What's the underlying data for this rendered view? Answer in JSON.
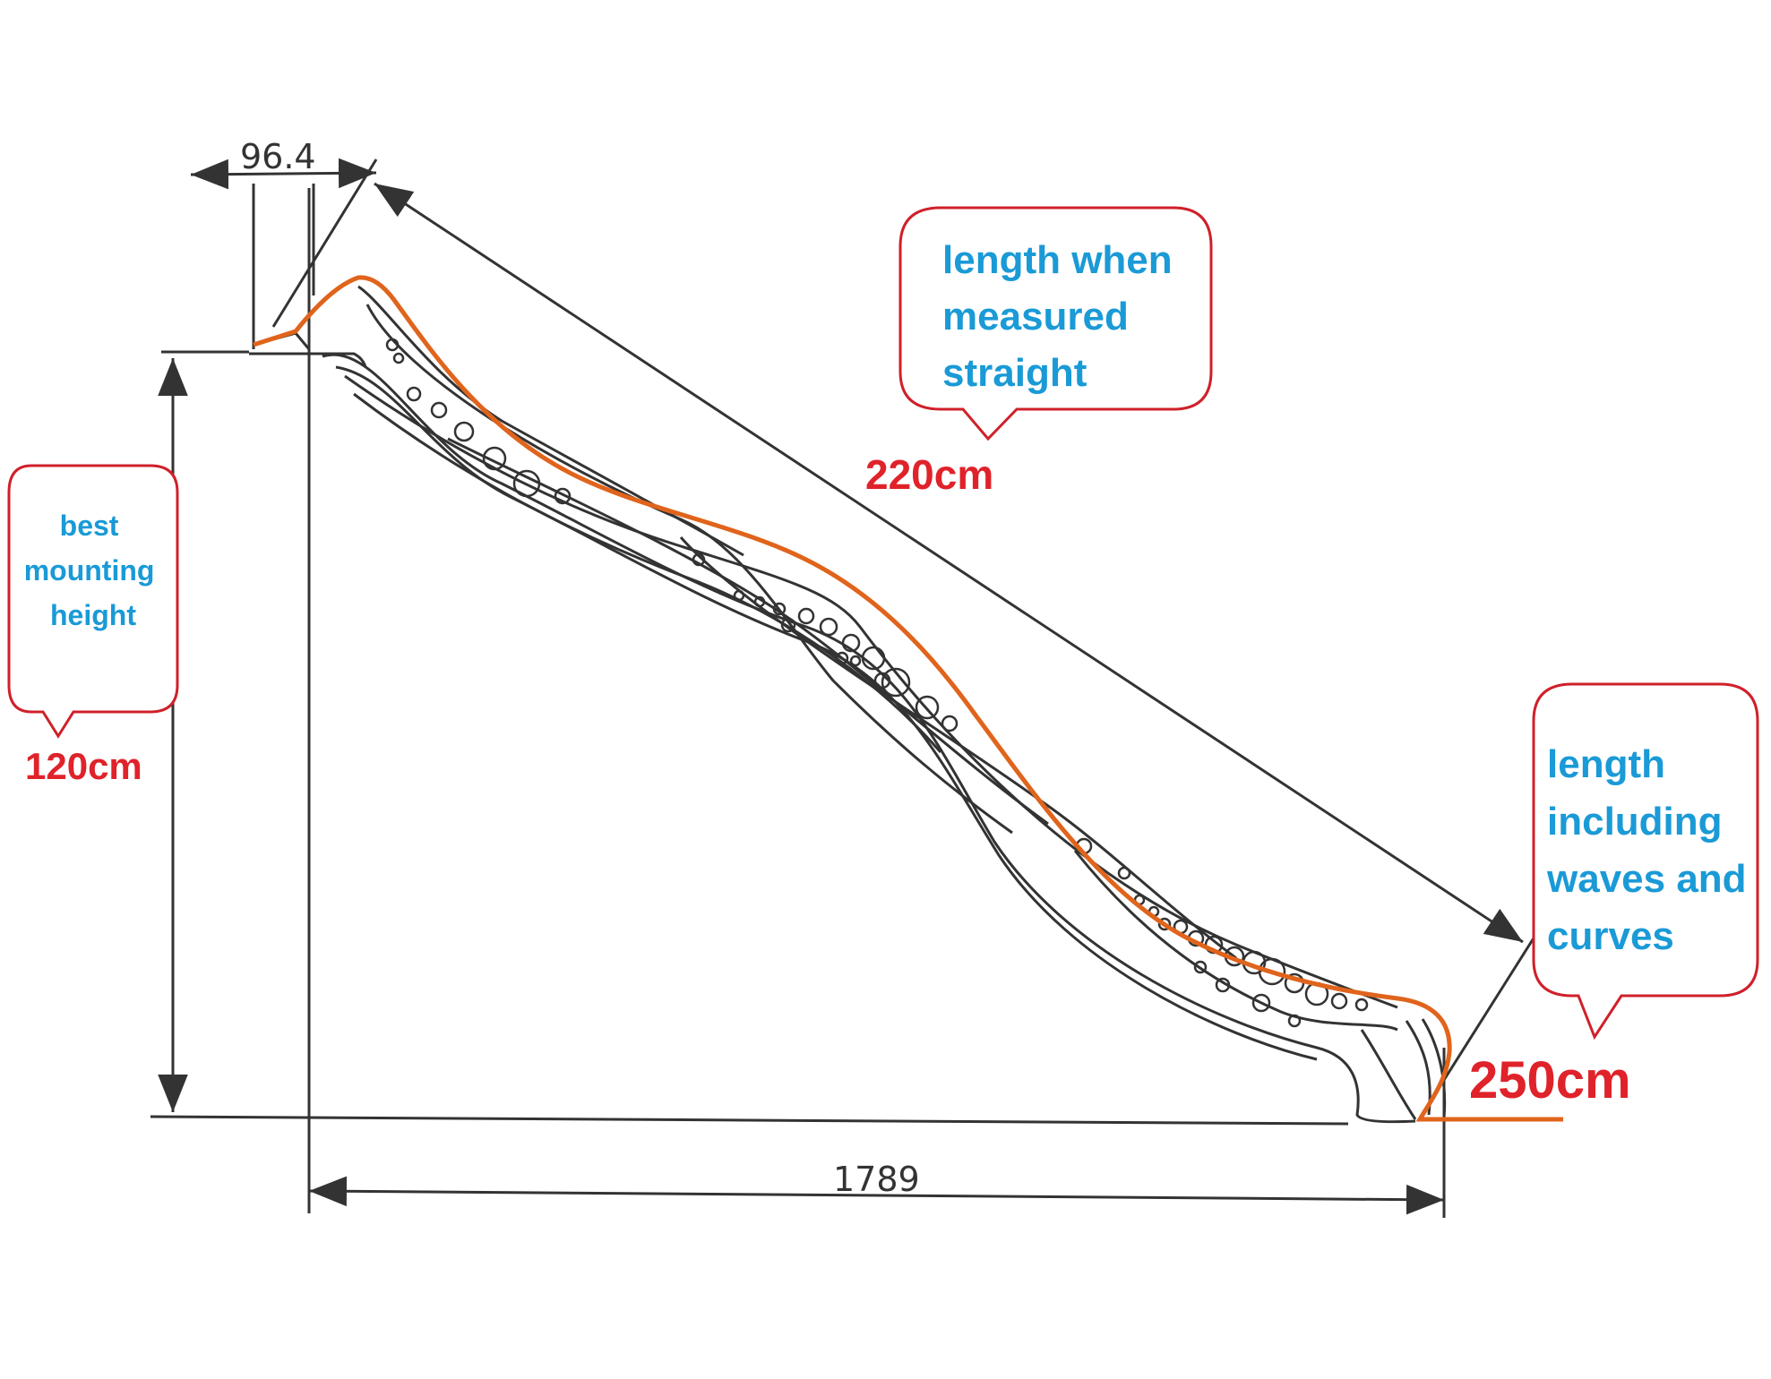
{
  "dimensions": {
    "ladder_depth": "96.4",
    "base_length": "1789"
  },
  "callouts": {
    "height": {
      "lines": [
        "best",
        "mounting",
        "height"
      ],
      "value": "120cm"
    },
    "straight": {
      "lines": [
        "length when",
        "measured",
        "straight"
      ],
      "value": "220cm"
    },
    "curved": {
      "lines": [
        "length",
        "including",
        "waves and",
        "curves"
      ],
      "value": "250cm"
    }
  },
  "colors": {
    "callout_text": "#1a9ad6",
    "value_text": "#e0222a",
    "callout_border": "#d0202a",
    "slide_outline": "#e0641c",
    "drawing_lines": "#333333"
  }
}
